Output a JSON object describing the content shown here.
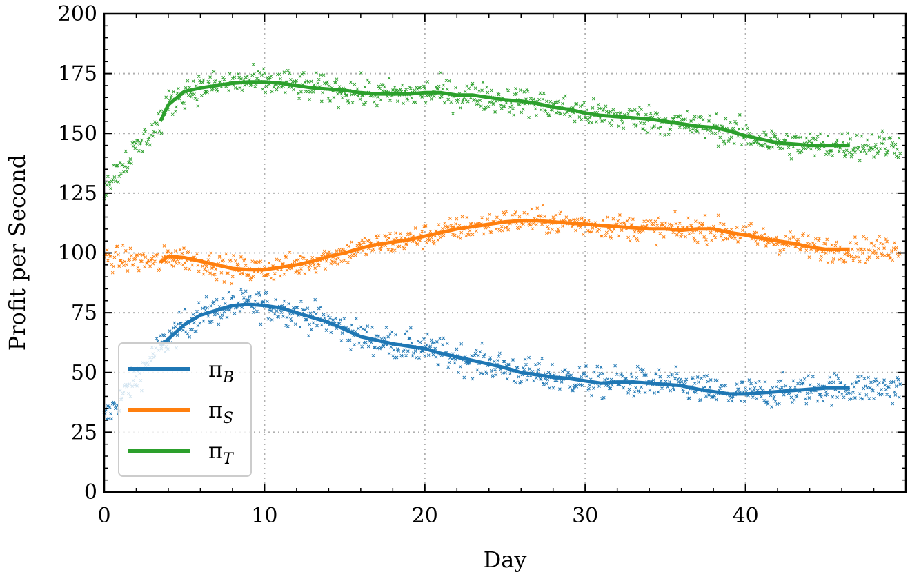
{
  "chart_data": {
    "type": "line",
    "xlabel": "Day",
    "ylabel": "Profit per Second",
    "xlim": [
      0,
      50
    ],
    "ylim": [
      0,
      200
    ],
    "x_ticks": [
      0,
      10,
      20,
      30,
      40
    ],
    "y_ticks": [
      0,
      25,
      50,
      75,
      100,
      125,
      150,
      175,
      200
    ],
    "grid": true,
    "grid_style": "dotted",
    "legend_position": "lower-left",
    "series": [
      {
        "name": "π",
        "subscript": "B",
        "color": "#1f77b4",
        "smoothed": {
          "x": [
            3.5,
            4,
            5,
            6,
            7,
            8,
            9,
            10,
            11,
            12,
            13,
            14,
            15,
            16,
            17,
            18,
            19,
            20,
            21,
            22,
            23,
            24,
            25,
            26,
            27,
            28,
            29,
            30,
            31,
            32,
            33,
            34,
            35,
            36,
            37,
            38,
            39,
            40,
            41,
            42,
            43,
            44,
            45,
            46,
            46.5
          ],
          "y": [
            61,
            64,
            70,
            74,
            76,
            78,
            78.5,
            78,
            77,
            75,
            73,
            71,
            68,
            65,
            63.5,
            62,
            61,
            60,
            58,
            56.5,
            55,
            53.5,
            52,
            50,
            49,
            48,
            47.5,
            46.5,
            45.5,
            46,
            46,
            45.5,
            45,
            44.5,
            43,
            42,
            41,
            41,
            41.5,
            42,
            42.5,
            43,
            43.5,
            43.5,
            43.5
          ]
        },
        "raw_range": [
          20,
          92
        ]
      },
      {
        "name": "π",
        "subscript": "S",
        "color": "#ff7f0e",
        "smoothed": {
          "x": [
            3.5,
            4,
            5,
            6,
            7,
            8,
            9,
            10,
            11,
            12,
            13,
            14,
            15,
            16,
            17,
            18,
            19,
            20,
            21,
            22,
            23,
            24,
            25,
            26,
            27,
            28,
            29,
            30,
            31,
            32,
            33,
            34,
            35,
            36,
            37,
            38,
            39,
            40,
            41,
            42,
            43,
            44,
            45,
            46,
            46.5
          ],
          "y": [
            96,
            98.5,
            98,
            96.5,
            95,
            93.5,
            93,
            93,
            94,
            95,
            96.5,
            98.5,
            100,
            102,
            103.5,
            104.5,
            105.5,
            107,
            108.5,
            110,
            111,
            112,
            113,
            113.5,
            113.5,
            113,
            112.5,
            112,
            111.5,
            111,
            110.5,
            110,
            110,
            109.5,
            110,
            110,
            108.5,
            107.5,
            106,
            105,
            104,
            102.5,
            101.5,
            101.5,
            101.5
          ]
        },
        "raw_range": [
          80,
          122
        ]
      },
      {
        "name": "π",
        "subscript": "T",
        "color": "#2ca02c",
        "smoothed": {
          "x": [
            3.5,
            4,
            5,
            6,
            7,
            8,
            9,
            10,
            11,
            12,
            13,
            14,
            15,
            16,
            17,
            18,
            19,
            20,
            21,
            22,
            23,
            24,
            25,
            26,
            27,
            28,
            29,
            30,
            31,
            32,
            33,
            34,
            35,
            36,
            37,
            38,
            39,
            40,
            41,
            42,
            43,
            44,
            45,
            46,
            46.5
          ],
          "y": [
            155,
            162,
            167.5,
            169,
            170,
            171,
            171.5,
            171.5,
            171,
            170,
            169,
            168.5,
            168,
            167,
            166.5,
            166.5,
            166.5,
            167,
            167,
            166,
            166,
            165,
            164,
            163.5,
            162.5,
            161,
            160,
            158.5,
            157.5,
            157,
            156.5,
            156,
            155,
            154,
            153,
            152.5,
            151,
            149,
            147.5,
            146,
            145.5,
            145,
            145,
            145,
            145
          ]
        },
        "raw_range": [
          108,
          180
        ]
      }
    ]
  }
}
